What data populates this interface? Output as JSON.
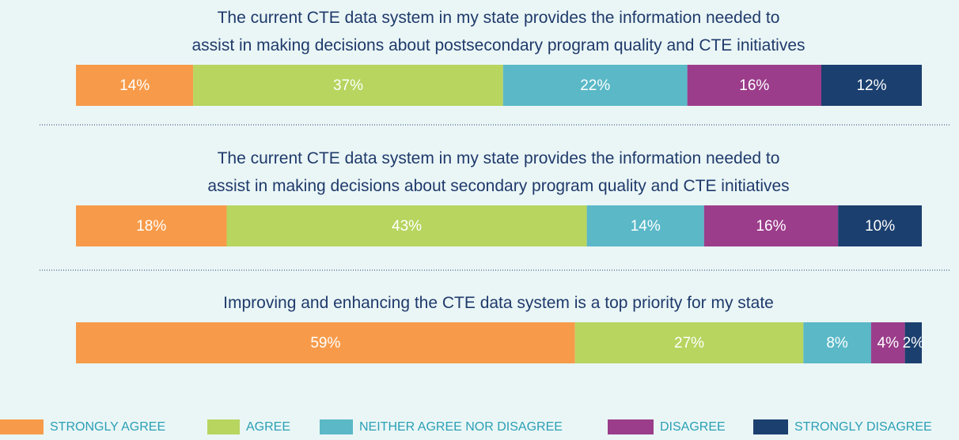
{
  "chart_data": {
    "type": "stacked-bar",
    "categories": [
      "The current CTE data system in my state provides the information needed to\nassist in making decisions about postsecondary program quality and CTE initiatives",
      "The current CTE data system in my state provides the information needed to\nassist in making decisions about secondary program quality and CTE initiatives",
      "Improving and enhancing the CTE data system is a top priority for my state"
    ],
    "series": [
      {
        "name": "STRONGLY AGREE",
        "color": "#f79b4a",
        "values": [
          14,
          18,
          59
        ],
        "value_labels": [
          "14%",
          "18%",
          "59%"
        ]
      },
      {
        "name": "AGREE",
        "color": "#b7d55f",
        "values": [
          37,
          43,
          27
        ],
        "value_labels": [
          "37%",
          "43%",
          "27%"
        ]
      },
      {
        "name": "NEITHER AGREE NOR DISAGREE",
        "color": "#5ab8c7",
        "values": [
          22,
          14,
          8
        ],
        "value_labels": [
          "22%",
          "14%",
          "8%"
        ]
      },
      {
        "name": "DISAGREE",
        "color": "#9b3d8b",
        "values": [
          16,
          16,
          4
        ],
        "value_labels": [
          "16%",
          "16%",
          "4%"
        ]
      },
      {
        "name": "STRONGLY DISAGREE",
        "color": "#1b3f6f",
        "values": [
          12,
          10,
          2
        ],
        "value_labels": [
          "12%",
          "10%",
          "2%"
        ]
      }
    ],
    "legend": "bottom"
  }
}
